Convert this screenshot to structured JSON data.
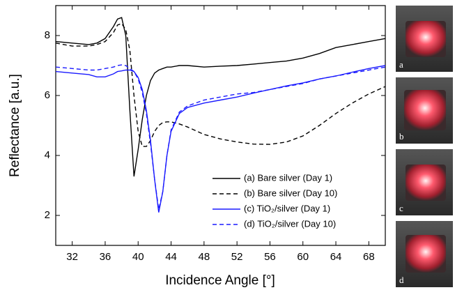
{
  "chart_data": {
    "type": "line",
    "xlabel": "Incidence Angle [°]",
    "ylabel": "Reflectance [a.u.]",
    "xlim": [
      30,
      70
    ],
    "ylim": [
      1,
      9
    ],
    "xticks": [
      32,
      36,
      40,
      44,
      48,
      52,
      56,
      60,
      64,
      68
    ],
    "yticks": [
      2,
      4,
      6,
      8
    ],
    "x": [
      30,
      32,
      34,
      35,
      36,
      37,
      37.5,
      38,
      38.5,
      39,
      39.5,
      40,
      40.5,
      41,
      41.5,
      42,
      42.5,
      43,
      43.5,
      44,
      45,
      46,
      48,
      50,
      52,
      54,
      56,
      58,
      60,
      62,
      64,
      66,
      68,
      70
    ],
    "series": [
      {
        "name": "(a) Bare silver (Day 1)",
        "color": "#000000",
        "linestyle": "solid",
        "values": [
          7.8,
          7.75,
          7.7,
          7.75,
          7.9,
          8.3,
          8.55,
          8.6,
          8.0,
          5.5,
          3.3,
          4.2,
          5.2,
          6.0,
          6.5,
          6.75,
          6.85,
          6.9,
          6.95,
          6.95,
          7.0,
          7.0,
          6.95,
          6.98,
          7.0,
          7.05,
          7.1,
          7.15,
          7.25,
          7.4,
          7.6,
          7.7,
          7.8,
          7.9
        ]
      },
      {
        "name": "(b) Bare silver (Day 10)",
        "color": "#000000",
        "linestyle": "dashed",
        "values": [
          7.75,
          7.65,
          7.65,
          7.7,
          7.8,
          8.1,
          8.35,
          8.4,
          8.2,
          7.5,
          6.0,
          4.8,
          4.3,
          4.3,
          4.5,
          4.8,
          5.0,
          5.1,
          5.12,
          5.12,
          5.05,
          4.95,
          4.7,
          4.55,
          4.45,
          4.38,
          4.37,
          4.45,
          4.65,
          5.0,
          5.4,
          5.75,
          6.05,
          6.3
        ]
      },
      {
        "name": "(c) TiO₂/silver (Day 1)",
        "color": "#1a1aff",
        "linestyle": "solid",
        "values": [
          6.8,
          6.75,
          6.7,
          6.62,
          6.62,
          6.72,
          6.8,
          6.82,
          6.85,
          6.85,
          6.8,
          6.6,
          6.2,
          5.5,
          4.5,
          3.2,
          2.1,
          2.8,
          4.0,
          4.8,
          5.4,
          5.6,
          5.75,
          5.85,
          5.95,
          6.08,
          6.2,
          6.32,
          6.42,
          6.55,
          6.65,
          6.78,
          6.9,
          7.0
        ]
      },
      {
        "name": "(d) TiO₂/silver (Day 10)",
        "color": "#1a1aff",
        "linestyle": "dashed",
        "values": [
          6.95,
          6.9,
          6.85,
          6.85,
          6.9,
          6.95,
          7.0,
          7.02,
          7.0,
          6.9,
          6.8,
          6.55,
          6.1,
          5.4,
          4.4,
          3.2,
          2.2,
          2.8,
          4.0,
          4.85,
          5.45,
          5.65,
          5.85,
          5.95,
          6.05,
          6.1,
          6.2,
          6.3,
          6.4,
          6.55,
          6.65,
          6.75,
          6.85,
          6.95
        ]
      }
    ],
    "legend": "lower right"
  },
  "panel_labels": [
    "a",
    "b",
    "c",
    "d"
  ]
}
